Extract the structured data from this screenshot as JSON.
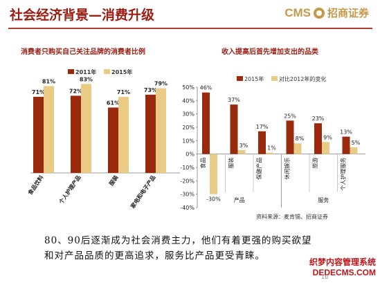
{
  "header": {
    "title": "社会经济背景—消费升级",
    "logo_text": "CMS",
    "logo_cn": "招商证券"
  },
  "colors": {
    "dark": "#9a2a0e",
    "light": "#e9cb85",
    "accent": "#9a1b10"
  },
  "chart_data": [
    {
      "type": "bar",
      "title": "消费者只购买自己关注品牌的消费者比例",
      "categories": [
        "食品饮料",
        "个人护理产品",
        "服装",
        "家电和电子产品"
      ],
      "series": [
        {
          "name": "2011年",
          "values": [
            71,
            72,
            61,
            73
          ]
        },
        {
          "name": "2015年",
          "values": [
            81,
            83,
            71,
            79
          ]
        }
      ],
      "value_labels_suffix": "%",
      "legend": "top"
    },
    {
      "type": "bar",
      "title": "收入提高后首先增加支出的品类",
      "categories": [
        "食品",
        "服装",
        "保健产品",
        "休闲娱乐",
        "旅游",
        "个人护理服务"
      ],
      "series": [
        {
          "name": "2015年",
          "values": [
            46,
            37,
            17,
            25,
            23,
            13
          ]
        },
        {
          "name": "对比2012年的变化",
          "values": [
            -30,
            3,
            1,
            8,
            9,
            5
          ]
        }
      ],
      "ylim": [
        -40,
        50
      ],
      "yticks": [
        "50%",
        "40%",
        "30%",
        "20%",
        "10%",
        "0%",
        "-10%",
        "-20%",
        "-30%",
        "-40%"
      ],
      "group_labels": [
        "产品",
        "服务"
      ],
      "legend": "top"
    }
  ],
  "source": "资料来源：麦肯锡、招商证券",
  "body_text": [
    "80、90后逐渐成为社会消费主力，他们有着更强的购买欲望",
    "和对产品品质的更高追求，服务比产品更受青睐。"
  ],
  "watermark": {
    "line1": "织梦内容管理系统",
    "line2": "DEDECMS.COM"
  },
  "page_number": "10"
}
